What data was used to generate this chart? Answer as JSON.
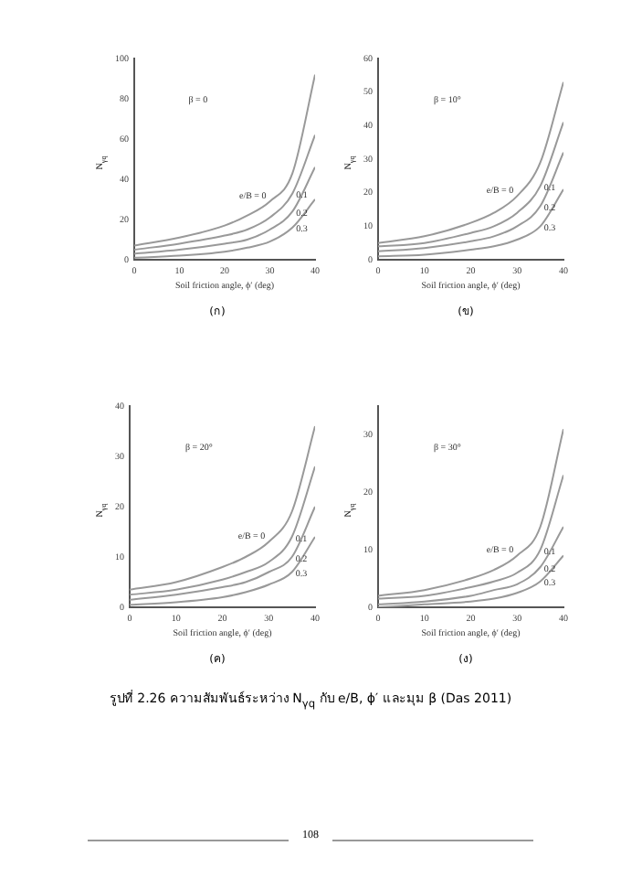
{
  "chart_data": [
    {
      "type": "line",
      "title": "β = 0",
      "subtitle": "(ก)",
      "xlabel": "Soil friction angle, ϕ′ (deg)",
      "ylabel": "N$_{γq}$",
      "x": [
        0,
        10,
        20,
        25,
        30,
        35,
        40
      ],
      "xlim": [
        0,
        40
      ],
      "xticks": [
        0,
        10,
        20,
        30,
        40
      ],
      "ylim": [
        0,
        100
      ],
      "yticks": [
        0,
        20,
        40,
        60,
        80,
        100
      ],
      "marker": "none",
      "series": [
        {
          "name": "e/B = 0",
          "color": "#999999",
          "values": [
            7,
            11,
            17,
            22,
            29,
            43,
            92
          ]
        },
        {
          "name": "0.1",
          "color": "#999999",
          "values": [
            5,
            8,
            12,
            15,
            21,
            33,
            62
          ]
        },
        {
          "name": "0.2",
          "color": "#999999",
          "values": [
            3,
            5,
            8,
            10,
            15,
            24,
            46
          ]
        },
        {
          "name": "0.3",
          "color": "#999999",
          "values": [
            1,
            2,
            4,
            6,
            9,
            16,
            30
          ]
        }
      ]
    },
    {
      "type": "line",
      "title": "β = 10°",
      "subtitle": "(ข)",
      "xlabel": "Soil friction angle, ϕ′ (deg)",
      "ylabel": "N$_{γq}$",
      "x": [
        0,
        10,
        20,
        25,
        30,
        35,
        40
      ],
      "xlim": [
        0,
        40
      ],
      "xticks": [
        0,
        10,
        20,
        30,
        40
      ],
      "ylim": [
        0,
        60
      ],
      "yticks": [
        0,
        10,
        20,
        30,
        40,
        50,
        60
      ],
      "marker": "none",
      "series": [
        {
          "name": "e/B = 0",
          "color": "#999999",
          "values": [
            5,
            7,
            11,
            14,
            19,
            29,
            53
          ]
        },
        {
          "name": "0.1",
          "color": "#999999",
          "values": [
            4,
            5,
            8,
            10,
            14,
            22,
            41
          ]
        },
        {
          "name": "0.2",
          "color": "#999999",
          "values": [
            2.5,
            3.5,
            5.5,
            7,
            10,
            16,
            32
          ]
        },
        {
          "name": "0.3",
          "color": "#999999",
          "values": [
            1,
            1.5,
            3,
            4,
            6,
            10,
            21
          ]
        }
      ]
    },
    {
      "type": "line",
      "title": "β = 20°",
      "subtitle": "(ค)",
      "xlabel": "Soil friction angle, ϕ′ (deg)",
      "ylabel": "N$_{γq}$",
      "x": [
        0,
        10,
        20,
        25,
        30,
        35,
        40
      ],
      "xlim": [
        0,
        40
      ],
      "xticks": [
        0,
        10,
        20,
        30,
        40
      ],
      "ylim": [
        0,
        40
      ],
      "yticks": [
        0,
        10,
        20,
        30,
        40
      ],
      "marker": "none",
      "series": [
        {
          "name": "e/B = 0",
          "color": "#999999",
          "values": [
            3.5,
            5,
            8,
            10,
            13,
            19,
            36
          ]
        },
        {
          "name": "0.1",
          "color": "#999999",
          "values": [
            2.5,
            3.5,
            5.5,
            7,
            9,
            14,
            28
          ]
        },
        {
          "name": "0.2",
          "color": "#999999",
          "values": [
            1.5,
            2.5,
            4,
            5,
            7,
            10,
            20
          ]
        },
        {
          "name": "0.3",
          "color": "#999999",
          "values": [
            0.5,
            1,
            2,
            3,
            4.5,
            7,
            14
          ]
        }
      ]
    },
    {
      "type": "line",
      "title": "β = 30°",
      "subtitle": "(ง)",
      "xlabel": "Soil friction angle, ϕ′ (deg)",
      "ylabel": "N$_{γq}$",
      "x": [
        0,
        10,
        20,
        25,
        30,
        35,
        40
      ],
      "xlim": [
        0,
        40
      ],
      "xticks": [
        0,
        10,
        20,
        30,
        40
      ],
      "ylim": [
        0,
        35
      ],
      "yticks": [
        0,
        10,
        20,
        30
      ],
      "marker": "none",
      "annotations": [
        "รูปที่ 2.26 ความสัมพันธ์ระหว่าง N$_{γq}$ กับ e/B, ϕ′ และมุม β (Das 2011)",
        "108"
      ],
      "series": [
        {
          "name": "e/B = 0",
          "color": "#999999",
          "values": [
            2,
            3,
            5,
            6.5,
            9,
            14,
            31
          ]
        },
        {
          "name": "0.1",
          "color": "#999999",
          "values": [
            1.5,
            2,
            3.5,
            4.5,
            6,
            10,
            23
          ]
        },
        {
          "name": "0.2",
          "color": "#999999",
          "values": [
            0.5,
            1,
            2,
            3,
            4,
            7,
            14
          ]
        },
        {
          "name": "0.3",
          "color": "#999999",
          "values": [
            0,
            0.5,
            1,
            1.5,
            2.5,
            4.5,
            9
          ]
        }
      ]
    }
  ]
}
